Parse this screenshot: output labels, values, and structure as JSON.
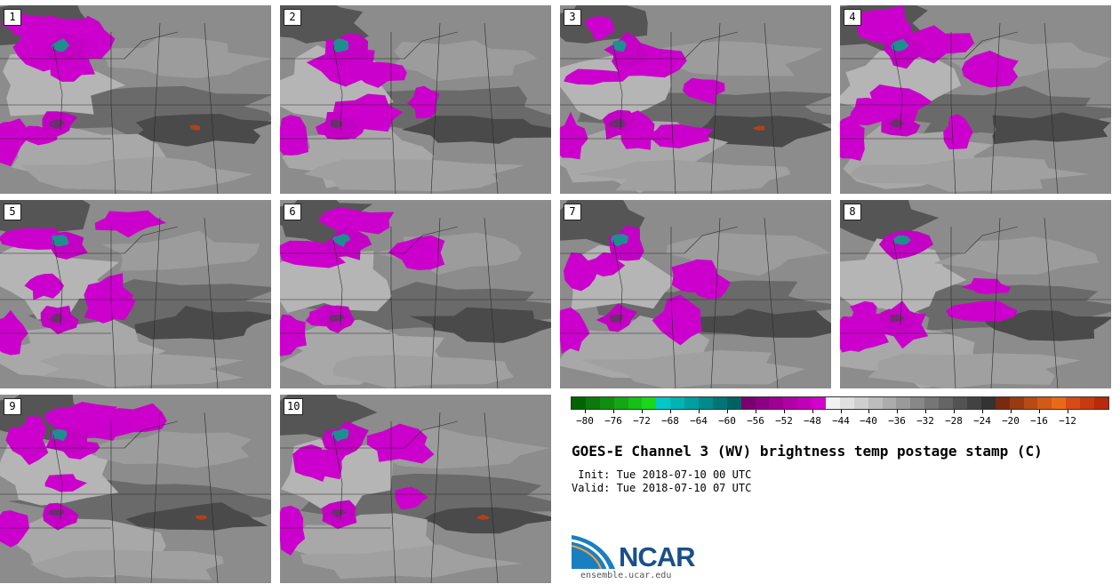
{
  "panels": [
    {
      "label": "1"
    },
    {
      "label": "2"
    },
    {
      "label": "3"
    },
    {
      "label": "4"
    },
    {
      "label": "5"
    },
    {
      "label": "6"
    },
    {
      "label": "7"
    },
    {
      "label": "8"
    },
    {
      "label": "9"
    },
    {
      "label": "10"
    }
  ],
  "colorbar": {
    "colors": [
      "#006400",
      "#0a7a0a",
      "#0f8f0f",
      "#13a813",
      "#16c016",
      "#19d819",
      "#00c8c8",
      "#00b4b4",
      "#009f9f",
      "#008a8a",
      "#007575",
      "#006262",
      "#7a0070",
      "#8c0082",
      "#9e0094",
      "#b000a6",
      "#c200b8",
      "#d400ca",
      "#f2f2f2",
      "#e0e0e0",
      "#cfcfcf",
      "#bdbdbd",
      "#acacac",
      "#9a9a9a",
      "#888888",
      "#767676",
      "#656565",
      "#535353",
      "#424242",
      "#333333",
      "#7a2a10",
      "#9a3a12",
      "#b84a14",
      "#d05a16",
      "#e86a18",
      "#d84a18",
      "#c83a10",
      "#b82a08"
    ],
    "tick_labels": [
      "−80",
      "−76",
      "−72",
      "−68",
      "−64",
      "−60",
      "−56",
      "−52",
      "−48",
      "−44",
      "−40",
      "−36",
      "−32",
      "−28",
      "−24",
      "−20",
      "−16",
      "−12"
    ]
  },
  "title": "GOES-E Channel 3 (WV) brightness temp postage stamp (C)",
  "init": " Init: Tue 2018-07-10 00 UTC",
  "valid": "Valid: Tue 2018-07-10 07 UTC",
  "logo": {
    "text": "NCAR",
    "url": "ensemble.ucar.edu"
  }
}
